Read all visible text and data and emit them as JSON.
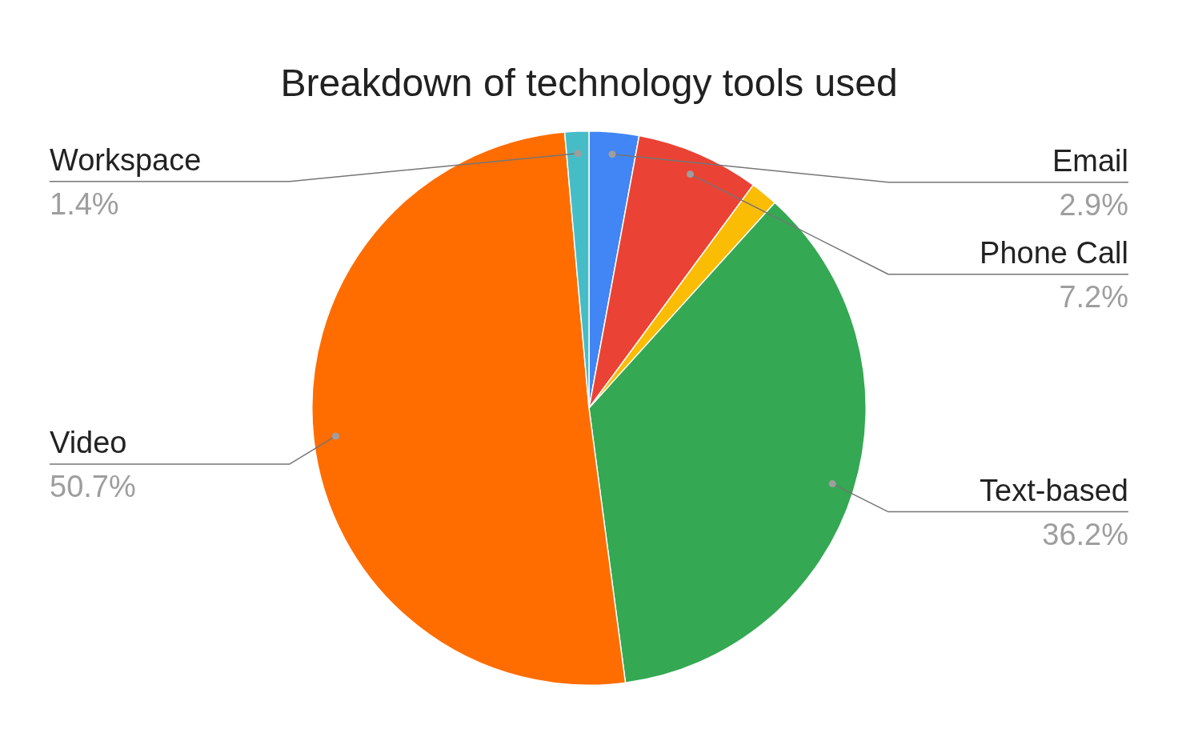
{
  "chart_data": {
    "type": "pie",
    "title": "Breakdown of technology tools used",
    "categories": [
      "Email",
      "Phone Call",
      null,
      "Text-based",
      "Video",
      "Workspace"
    ],
    "values": [
      2.9,
      7.2,
      1.6,
      36.2,
      50.7,
      1.4
    ],
    "value_labels": [
      "2.9%",
      "7.2%",
      null,
      "36.2%",
      "50.7%",
      "1.4%"
    ],
    "colors": [
      "#4285f4",
      "#ea4335",
      "#fbbc04",
      "#34a853",
      "#ff6d01",
      "#46bdc6"
    ],
    "legend": false
  }
}
